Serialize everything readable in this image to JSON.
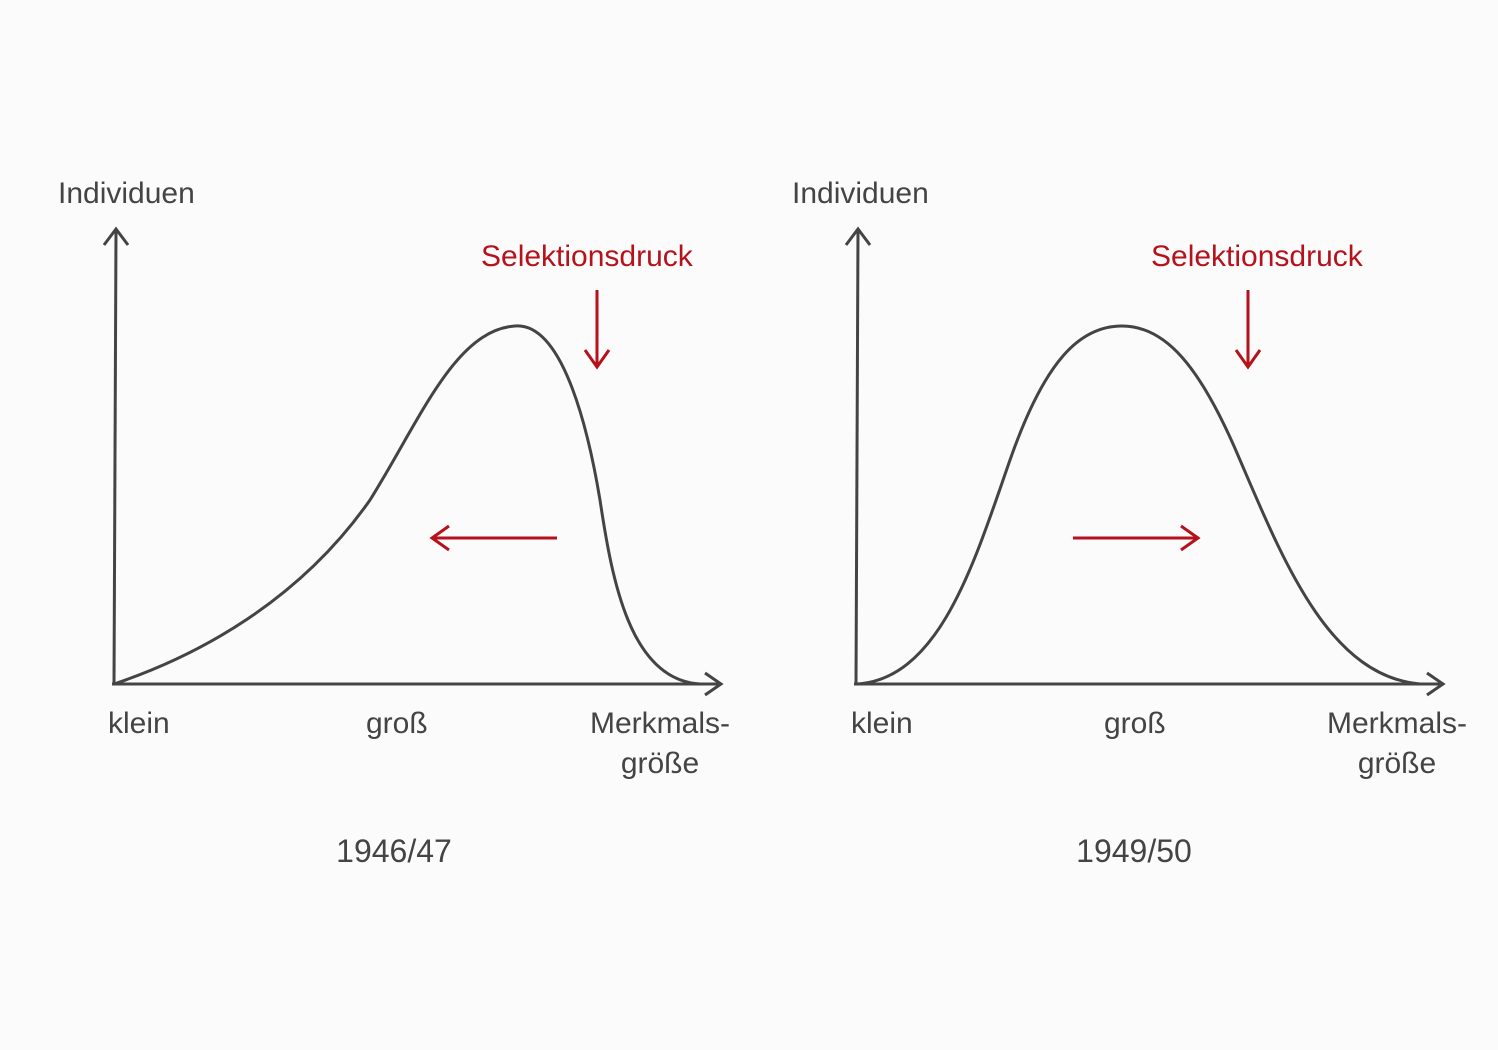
{
  "colors": {
    "ink": "#444444",
    "accent": "#b5121b",
    "background": "#fbfbfb"
  },
  "panels": [
    {
      "id": "1946",
      "y_axis_label": "Individuen",
      "pressure_label": "Selektionsdruck",
      "x_tick_small": "klein",
      "x_tick_large": "groß",
      "x_axis_label_line1": "Merkmals-",
      "x_axis_label_line2": "größe",
      "period_label": "1946/47",
      "shift_direction": "left",
      "curve_shape": "left-skewed",
      "pressure_arrow_direction": "down"
    },
    {
      "id": "1949",
      "y_axis_label": "Individuen",
      "pressure_label": "Selektionsdruck",
      "x_tick_small": "klein",
      "x_tick_large": "groß",
      "x_axis_label_line1": "Merkmals-",
      "x_axis_label_line2": "größe",
      "period_label": "1949/50",
      "shift_direction": "right",
      "curve_shape": "symmetric",
      "pressure_arrow_direction": "down"
    }
  ]
}
